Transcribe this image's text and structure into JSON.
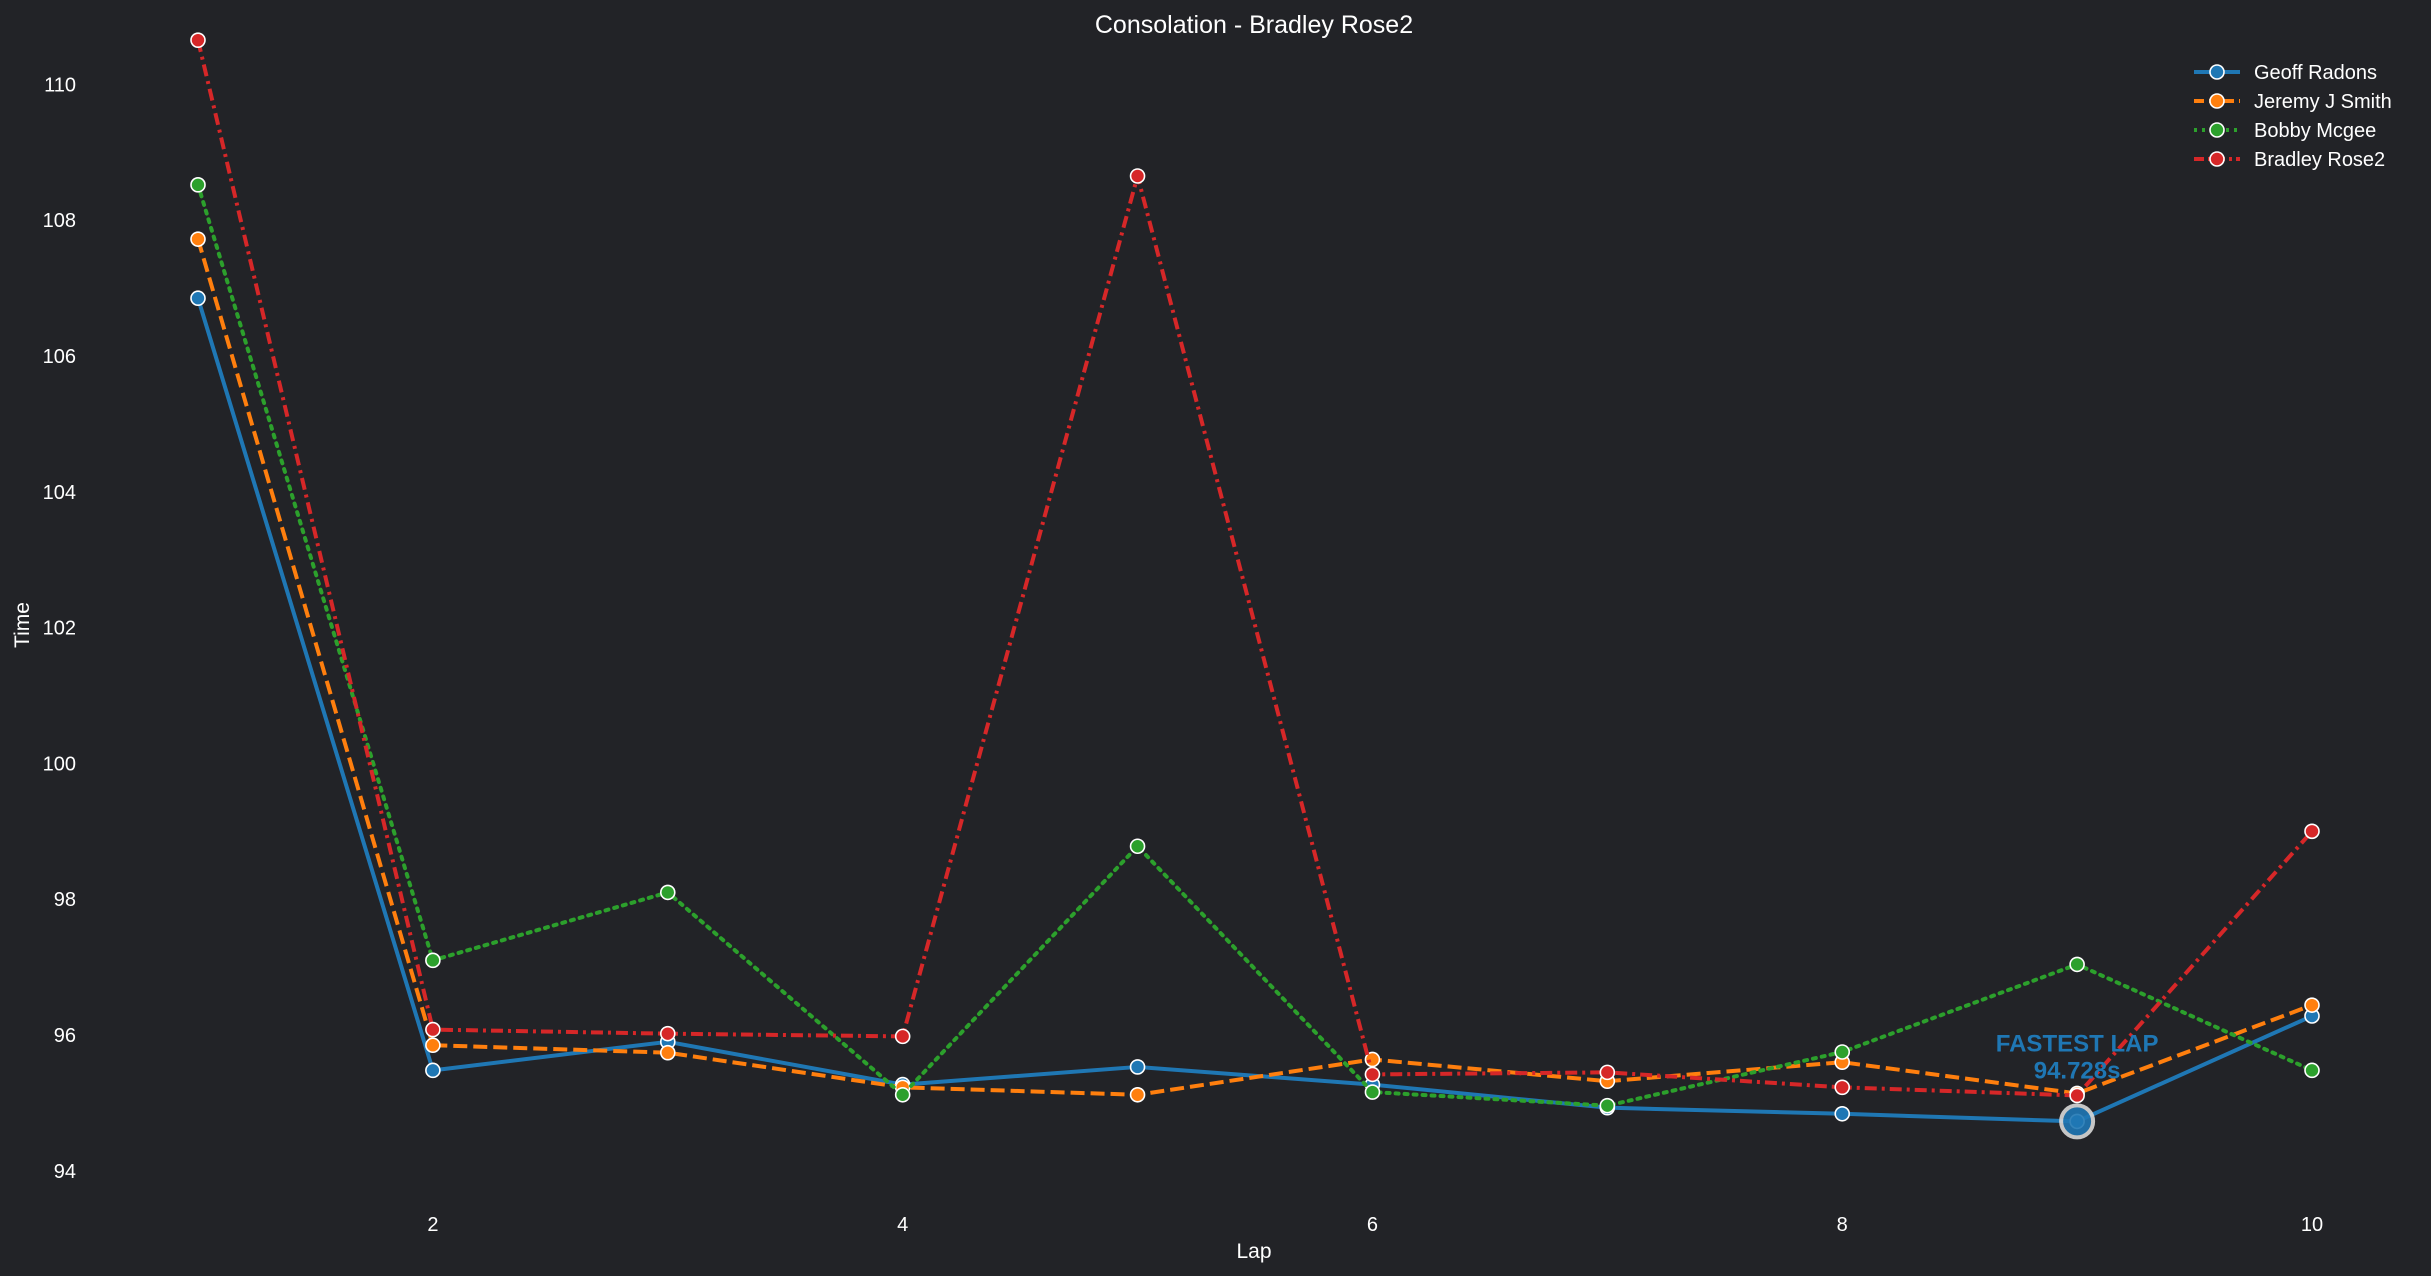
{
  "chart_data": {
    "type": "line",
    "title": "Consolation - Bradley Rose2",
    "xlabel": "Lap",
    "ylabel": "Time",
    "xlim": [
      1,
      10
    ],
    "ylim": [
      93.6,
      110.8
    ],
    "xticks": [
      2,
      4,
      6,
      8,
      10
    ],
    "yticks": [
      94,
      96,
      98,
      100,
      102,
      104,
      106,
      108,
      110
    ],
    "grid": false,
    "legend_position": "top-right",
    "x": [
      1,
      2,
      3,
      4,
      5,
      6,
      7,
      8,
      9,
      10
    ],
    "series": [
      {
        "name": "Geoff Radons",
        "color": "#1f77b4",
        "dash": "solid",
        "values": [
          106.85,
          95.48,
          95.9,
          95.27,
          95.53,
          95.27,
          94.93,
          94.84,
          94.728,
          96.28
        ]
      },
      {
        "name": "Jeremy J Smith",
        "color": "#ff7f0e",
        "dash": "dashed",
        "values": [
          107.72,
          95.85,
          95.74,
          95.23,
          95.12,
          95.64,
          95.32,
          95.6,
          95.14,
          96.44
        ]
      },
      {
        "name": "Bobby Mcgee",
        "color": "#2ca02c",
        "dash": "dotted",
        "values": [
          108.52,
          97.1,
          98.1,
          95.12,
          98.78,
          95.16,
          94.96,
          95.75,
          97.04,
          95.48
        ]
      },
      {
        "name": "Bradley Rose2",
        "color": "#d62728",
        "dash": "dashdot",
        "values": [
          110.65,
          96.08,
          96.02,
          95.98,
          108.65,
          95.42,
          95.45,
          95.23,
          95.11,
          99.0
        ]
      }
    ],
    "annotation": {
      "line1": "FASTEST LAP",
      "line2": "94.728s",
      "x": 9,
      "y": 94.728,
      "color": "#1f77b4"
    }
  }
}
